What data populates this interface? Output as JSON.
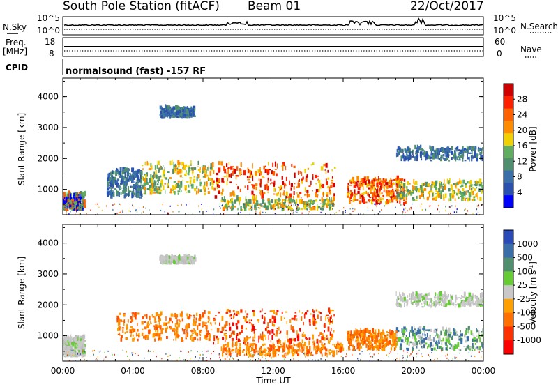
{
  "header": {
    "station": "South Pole Station (fitACF)",
    "beam": "Beam 01",
    "date": "22/Oct/2017"
  },
  "top_panels": {
    "nsky": {
      "left_label": "N.Sky",
      "right_label": "N.Search",
      "left_ticks": [
        "10^5",
        "10^0"
      ],
      "right_ticks": [
        "10^5",
        "10^0"
      ]
    },
    "freq": {
      "left_label": "Freq.",
      "left_unit": "[MHz]",
      "right_label": "Nave",
      "left_ticks": [
        "18",
        "8"
      ],
      "right_ticks": [
        "60",
        "0"
      ]
    },
    "cpid": {
      "label": "CPID",
      "text": "normalsound (fast) -157 RF"
    }
  },
  "colors": {
    "power_scale": [
      "#0000ff",
      "#2a50b0",
      "#3a6ea8",
      "#4f8f6e",
      "#5fae5f",
      "#f0d000",
      "#ff8c00",
      "#ff6000",
      "#ff2000",
      "#d00000"
    ],
    "velocity_scale": [
      "#2a4ab8",
      "#3a6ea8",
      "#4f8f6e",
      "#66cc33",
      "#c8c8c8",
      "#ffa000",
      "#ff7000",
      "#ff3000",
      "#ff0000"
    ]
  },
  "chart_data": [
    {
      "type": "heatmap",
      "name": "power",
      "xlabel": "Time UT",
      "ylabel": "Slant Range [km]",
      "x_ticks": [
        "00:00",
        "04:00",
        "08:00",
        "12:00",
        "16:00",
        "20:00",
        "00:00"
      ],
      "y_ticks": [
        1000,
        2000,
        3000,
        4000
      ],
      "ylim": [
        180,
        4600
      ],
      "xlim_hours": [
        0,
        24
      ],
      "colorbar": {
        "label": "Power [dB]",
        "ticks": [
          4,
          8,
          12,
          16,
          20,
          24,
          28
        ],
        "range": [
          0,
          32
        ]
      },
      "regions": [
        {
          "t0": 0.0,
          "t1": 1.2,
          "r0": 300,
          "r1": 800,
          "intensity": "mixed"
        },
        {
          "t0": 2.5,
          "t1": 4.5,
          "r0": 700,
          "r1": 1600,
          "intensity": "low"
        },
        {
          "t0": 4.5,
          "t1": 8.5,
          "r0": 800,
          "r1": 1800,
          "intensity": "mid"
        },
        {
          "t0": 8.5,
          "t1": 15.5,
          "r0": 700,
          "r1": 1800,
          "intensity": "high"
        },
        {
          "t0": 9.0,
          "t1": 15.5,
          "r0": 300,
          "r1": 650,
          "intensity": "mid"
        },
        {
          "t0": 16.2,
          "t1": 19.5,
          "r0": 500,
          "r1": 1300,
          "intensity": "high"
        },
        {
          "t0": 19.0,
          "t1": 24.0,
          "r0": 600,
          "r1": 1200,
          "intensity": "mid"
        },
        {
          "t0": 19.0,
          "t1": 24.0,
          "r0": 1900,
          "r1": 2300,
          "intensity": "low"
        },
        {
          "t0": 5.5,
          "t1": 7.5,
          "r0": 3300,
          "r1": 3600,
          "intensity": "low"
        }
      ]
    },
    {
      "type": "heatmap",
      "name": "velocity",
      "xlabel": "Time UT",
      "ylabel": "Slant Range [km]",
      "x_ticks": [
        "00:00",
        "04:00",
        "08:00",
        "12:00",
        "16:00",
        "20:00",
        "00:00"
      ],
      "y_ticks": [
        1000,
        2000,
        3000,
        4000
      ],
      "ylim": [
        180,
        4600
      ],
      "xlim_hours": [
        0,
        24
      ],
      "colorbar": {
        "label": "Velocity [m s^-1]",
        "ticks": [
          1000,
          500,
          100,
          25,
          -25,
          -100,
          -500,
          -1000
        ]
      },
      "regions": [
        {
          "t0": 0.0,
          "t1": 1.2,
          "r0": 300,
          "r1": 900,
          "intensity": "gray"
        },
        {
          "t0": 3.0,
          "t1": 8.5,
          "r0": 800,
          "r1": 1700,
          "intensity": "orange"
        },
        {
          "t0": 8.5,
          "t1": 15.5,
          "r0": 700,
          "r1": 1800,
          "intensity": "red"
        },
        {
          "t0": 9.0,
          "t1": 16.0,
          "r0": 300,
          "r1": 700,
          "intensity": "orange"
        },
        {
          "t0": 16.2,
          "t1": 19.0,
          "r0": 500,
          "r1": 1100,
          "intensity": "orange"
        },
        {
          "t0": 19.0,
          "t1": 24.0,
          "r0": 500,
          "r1": 1200,
          "intensity": "teal"
        },
        {
          "t0": 19.0,
          "t1": 24.0,
          "r0": 1900,
          "r1": 2300,
          "intensity": "gray"
        },
        {
          "t0": 5.5,
          "t1": 7.5,
          "r0": 3300,
          "r1": 3500,
          "intensity": "gray"
        }
      ]
    }
  ]
}
